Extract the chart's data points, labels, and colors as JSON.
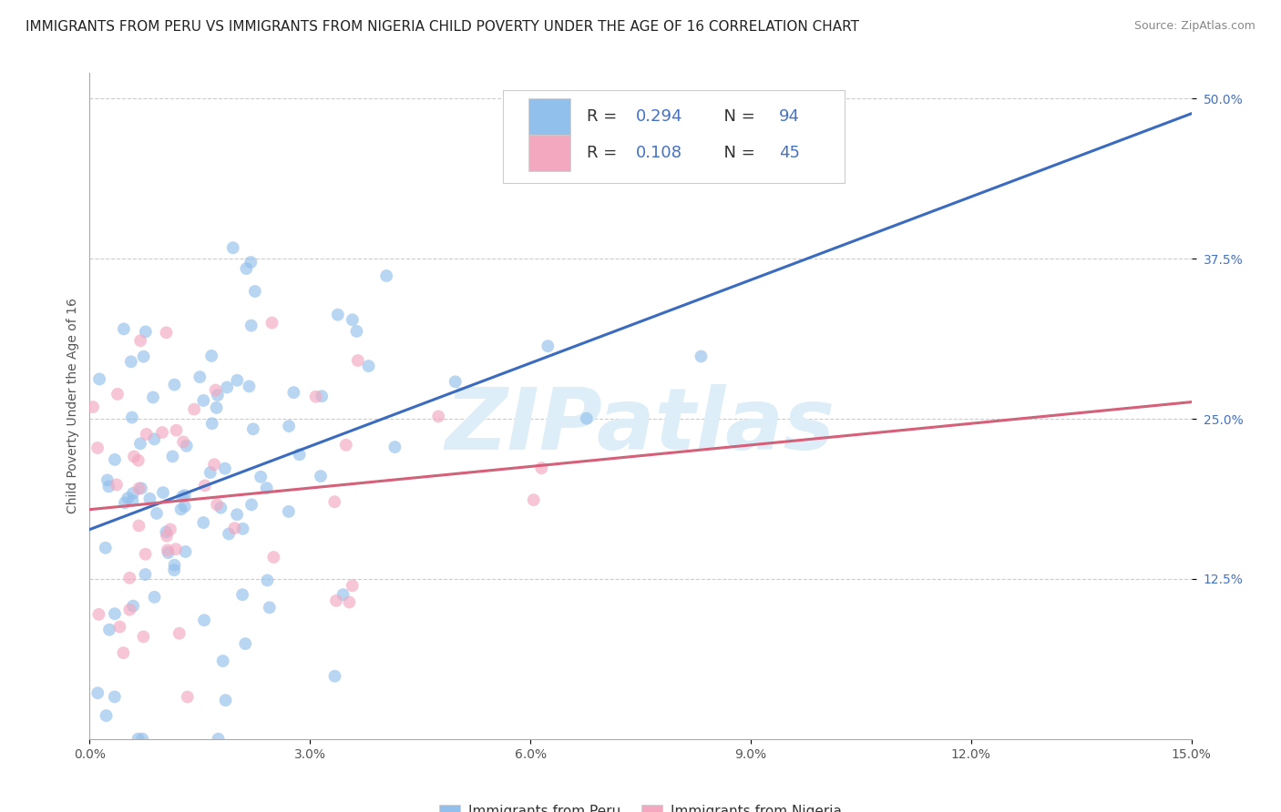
{
  "title": "IMMIGRANTS FROM PERU VS IMMIGRANTS FROM NIGERIA CHILD POVERTY UNDER THE AGE OF 16 CORRELATION CHART",
  "source": "Source: ZipAtlas.com",
  "ylabel": "Child Poverty Under the Age of 16",
  "y_ticks_vals": [
    0.125,
    0.25,
    0.375,
    0.5
  ],
  "y_ticks_labels": [
    "12.5%",
    "25.0%",
    "37.5%",
    "50.0%"
  ],
  "x_ticks_vals": [
    0.0,
    0.03,
    0.06,
    0.09,
    0.12,
    0.15
  ],
  "x_ticks_labels": [
    "0.0%",
    "3.0%",
    "6.0%",
    "9.0%",
    "12.0%",
    "15.0%"
  ],
  "peru_color": "#92c0ec",
  "nigeria_color": "#f4a8c0",
  "peru_line_color": "#3a6bbf",
  "nigeria_line_color": "#d4607a",
  "peru_R": 0.294,
  "peru_N": 94,
  "nigeria_R": 0.108,
  "nigeria_N": 45,
  "x_min": 0.0,
  "x_max": 0.15,
  "y_min": 0.0,
  "y_max": 0.52,
  "legend_label_peru": "Immigrants from Peru",
  "legend_label_nigeria": "Immigrants from Nigeria",
  "background_color": "#ffffff",
  "grid_color": "#cccccc",
  "watermark_text": "ZIPatlas",
  "watermark_color": "#ddeef8",
  "title_fontsize": 11,
  "tick_fontsize": 10,
  "scatter_size": 100,
  "scatter_alpha": 0.65,
  "seed": 42
}
